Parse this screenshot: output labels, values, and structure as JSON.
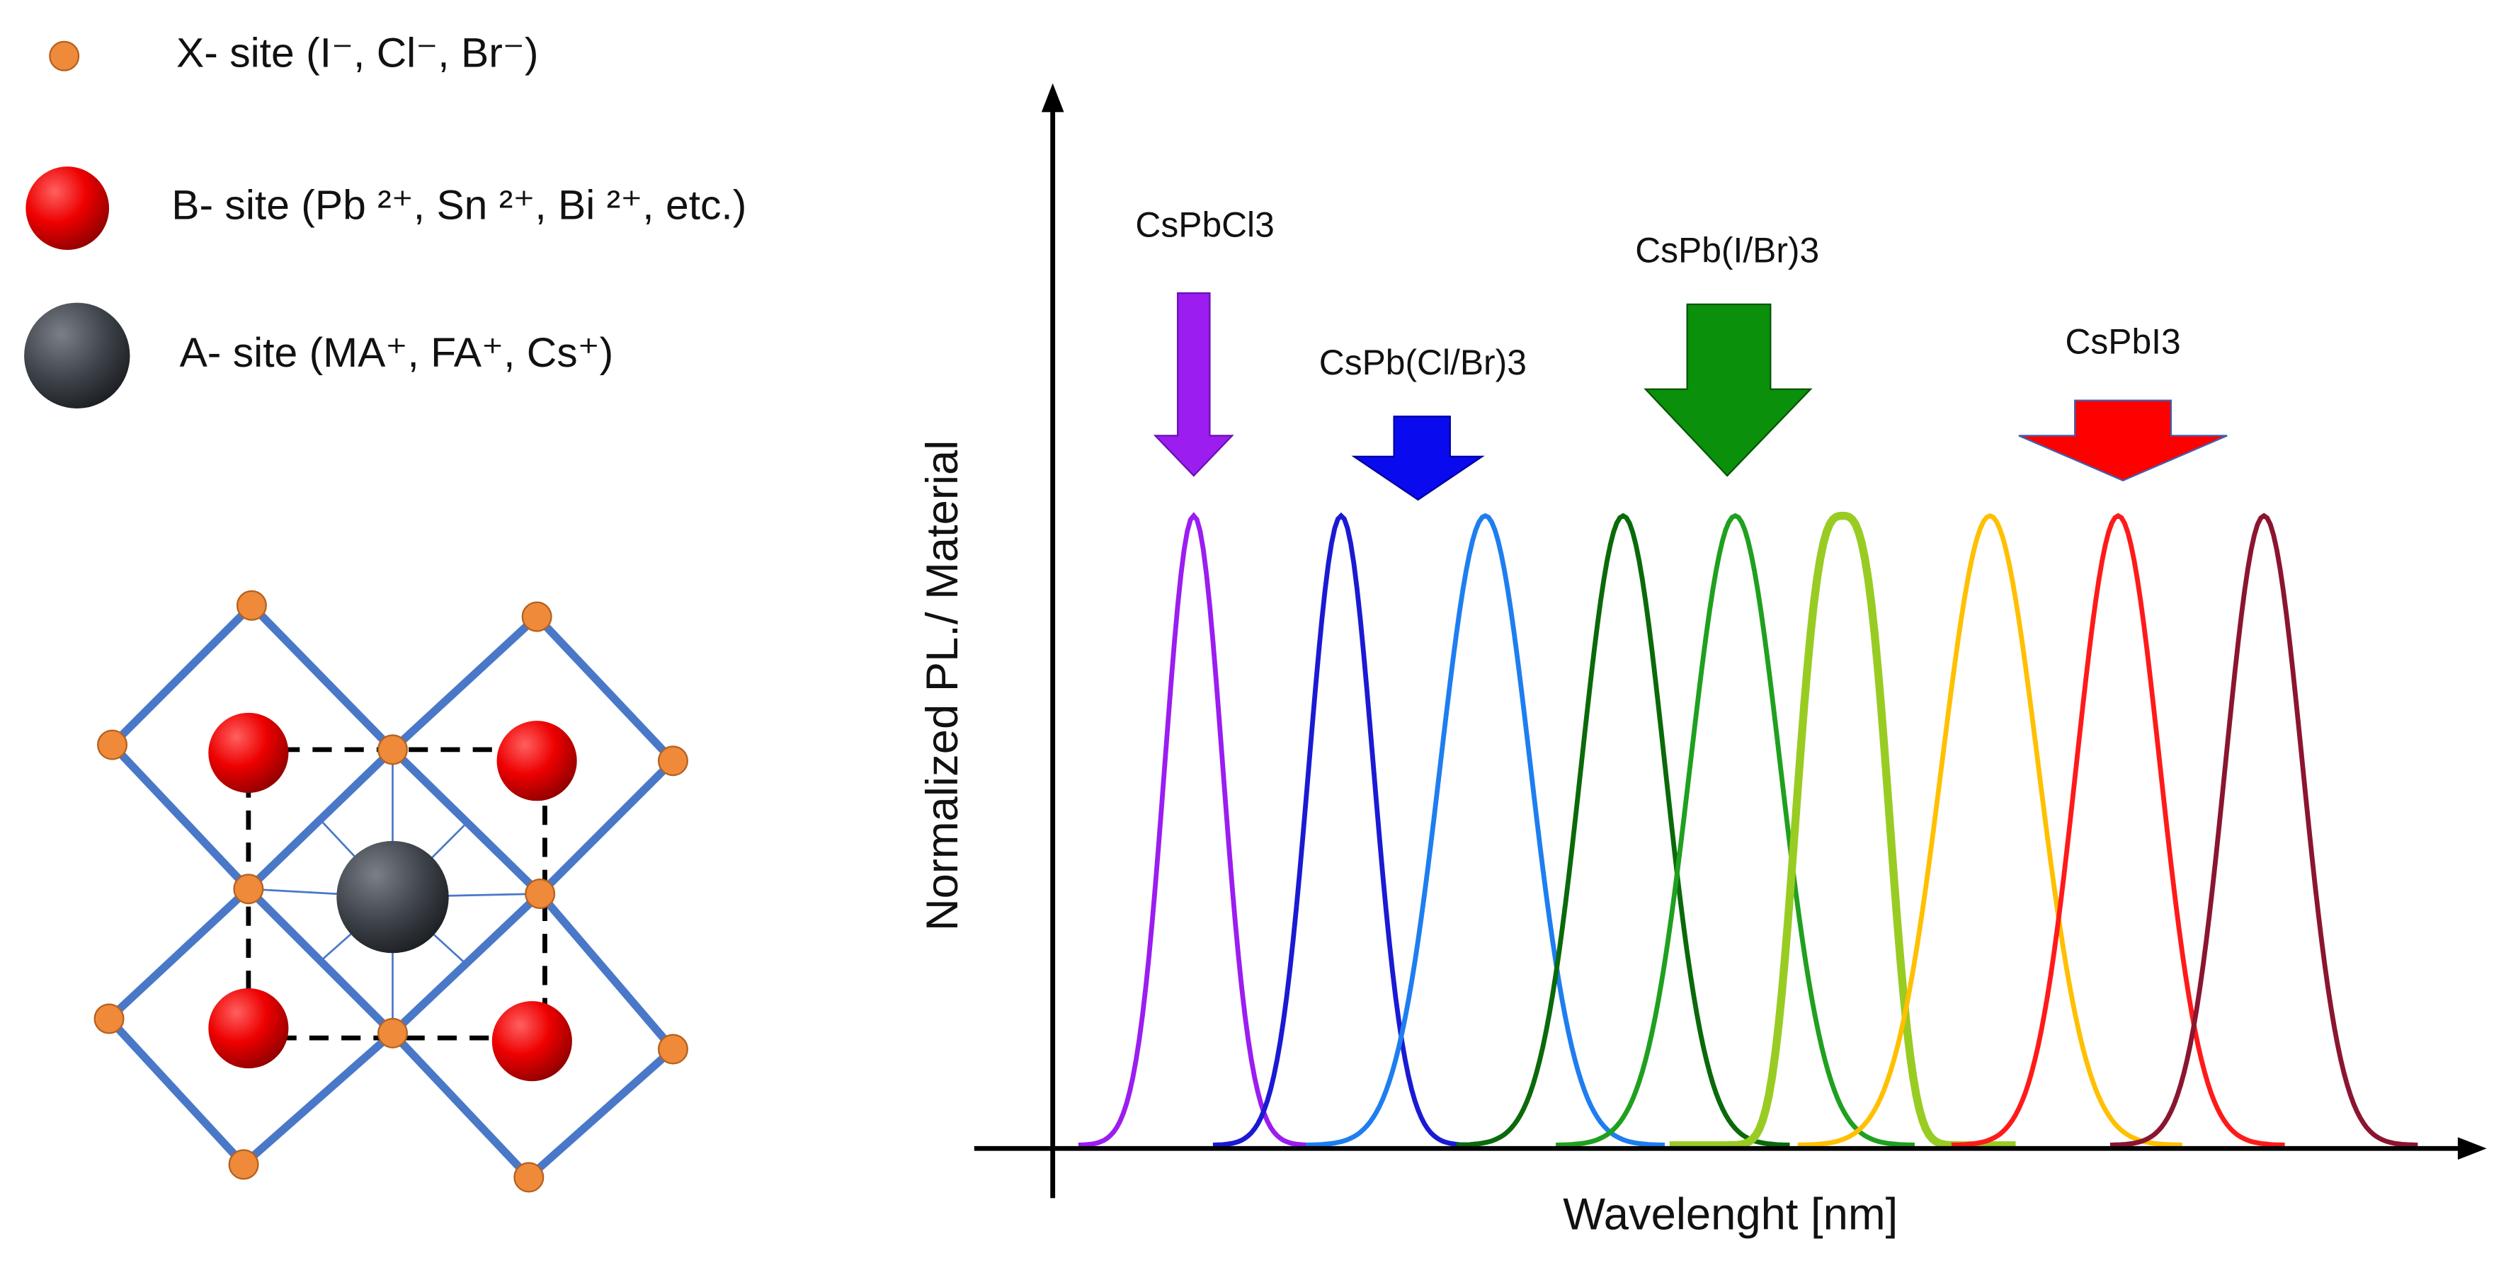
{
  "legend": {
    "items": [
      {
        "label": "X- site (I⁻, Cl⁻, Br⁻)"
      },
      {
        "label": "B- site (Pb ²⁺, Sn ²⁺, Bi ²⁺, etc.)"
      },
      {
        "label": "A- site (MA⁺, FA⁺, Cs⁺)"
      }
    ]
  },
  "spectra": {
    "y_label": "Normalized PL./ Material",
    "x_label": "Wavelenght [nm]",
    "arrows": [
      {
        "label": "CsPbCl3"
      },
      {
        "label": "CsPb(Cl/Br)3"
      },
      {
        "label": "CsPb(I/Br)3"
      },
      {
        "label": "CsPbI3"
      }
    ]
  }
}
